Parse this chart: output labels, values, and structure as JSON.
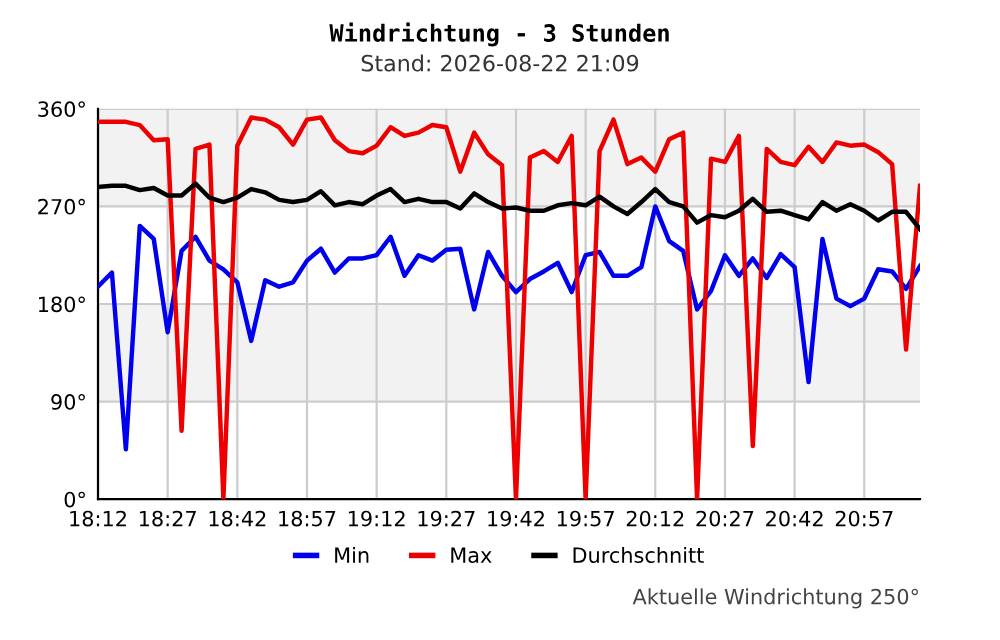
{
  "chart_data": {
    "type": "line",
    "title": "Windrichtung - 3 Stunden",
    "subtitle": "Stand: 2026-08-22 21:09",
    "annotations": [
      "Aktuelle Windrichtung 250°"
    ],
    "x": [
      18.2,
      18.25,
      18.3,
      18.35,
      18.4,
      18.45,
      18.5,
      18.55,
      18.6,
      18.65,
      18.7,
      18.75,
      18.8,
      18.85,
      18.9,
      18.95,
      19.0,
      19.05,
      19.1,
      19.15,
      19.2,
      19.25,
      19.3,
      19.35,
      19.4,
      19.45,
      19.5,
      19.55,
      19.6,
      19.65,
      19.7,
      19.75,
      19.8,
      19.85,
      19.9,
      19.95,
      20.0,
      20.05,
      20.1,
      20.15,
      20.2,
      20.25,
      20.3,
      20.35,
      20.4,
      20.45,
      20.5,
      20.55,
      20.6,
      20.65,
      20.7,
      20.75,
      20.8,
      20.85,
      20.9,
      20.95,
      21.0,
      21.05,
      21.1,
      21.15
    ],
    "series": [
      {
        "name": "Min",
        "color": "#0000ee",
        "values": [
          196,
          209,
          46,
          252,
          240,
          154,
          229,
          242,
          220,
          212,
          200,
          146,
          202,
          196,
          200,
          220,
          231,
          209,
          222,
          222,
          225,
          242,
          206,
          225,
          220,
          230,
          231,
          175,
          228,
          206,
          191,
          203,
          210,
          218,
          191,
          225,
          228,
          206,
          206,
          214,
          270,
          238,
          229,
          175,
          192,
          225,
          206,
          222,
          204,
          226,
          214,
          108,
          240,
          185,
          178,
          185,
          212,
          210,
          194,
          215
        ]
      },
      {
        "name": "Max",
        "color": "#ee0000",
        "values": [
          348,
          348,
          348,
          345,
          331,
          332,
          63,
          323,
          327,
          0,
          326,
          352,
          350,
          343,
          327,
          350,
          352,
          331,
          321,
          319,
          326,
          343,
          335,
          338,
          345,
          343,
          302,
          338,
          318,
          308,
          0,
          315,
          321,
          311,
          335,
          0,
          321,
          350,
          309,
          315,
          302,
          332,
          338,
          0,
          314,
          311,
          335,
          49,
          323,
          311,
          308,
          325,
          311,
          329,
          326,
          327,
          320,
          309,
          138,
          289
        ]
      },
      {
        "name": "Durchschnitt",
        "color": "#000000",
        "values": [
          288,
          289,
          289,
          285,
          287,
          280,
          280,
          291,
          278,
          274,
          278,
          286,
          283,
          276,
          274,
          276,
          284,
          271,
          274,
          272,
          280,
          286,
          274,
          277,
          274,
          274,
          268,
          282,
          274,
          268,
          269,
          266,
          266,
          271,
          273,
          271,
          279,
          270,
          263,
          274,
          286,
          274,
          270,
          255,
          262,
          260,
          266,
          277,
          265,
          266,
          262,
          258,
          274,
          266,
          272,
          266,
          257,
          265,
          265,
          249
        ]
      }
    ],
    "xlim": [
      18.2,
      21.15
    ],
    "ylim": [
      0,
      360
    ],
    "xticks": [
      {
        "value": 18.2,
        "label": "18:12"
      },
      {
        "value": 18.45,
        "label": "18:27"
      },
      {
        "value": 18.7,
        "label": "18:42"
      },
      {
        "value": 18.95,
        "label": "18:57"
      },
      {
        "value": 19.2,
        "label": "19:12"
      },
      {
        "value": 19.45,
        "label": "19:27"
      },
      {
        "value": 19.7,
        "label": "19:42"
      },
      {
        "value": 19.95,
        "label": "19:57"
      },
      {
        "value": 20.2,
        "label": "20:12"
      },
      {
        "value": 20.45,
        "label": "20:27"
      },
      {
        "value": 20.7,
        "label": "20:42"
      },
      {
        "value": 20.95,
        "label": "20:57"
      }
    ],
    "yticks": [
      {
        "value": 0,
        "label": "0°"
      },
      {
        "value": 90,
        "label": "90°"
      },
      {
        "value": 180,
        "label": "180°"
      },
      {
        "value": 270,
        "label": "270°"
      },
      {
        "value": 360,
        "label": "360°"
      }
    ],
    "bands": [
      {
        "axis": "y",
        "from": 90,
        "to": 180,
        "color": "#f2f2f2"
      },
      {
        "axis": "y",
        "from": 270,
        "to": 360,
        "color": "#f2f2f2"
      }
    ],
    "grid": true,
    "legend": "bottom",
    "marker": "none",
    "line_style": "solid"
  }
}
